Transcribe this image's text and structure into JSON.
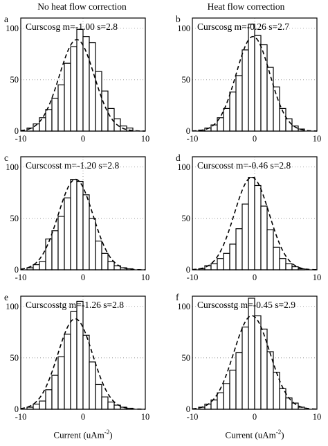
{
  "column_titles": [
    "No heat flow correction",
    "Heat flow correction"
  ],
  "xlabel": "Current (uAm",
  "xlabel_sup": "-2",
  "xlabel_close": ")",
  "chart_data": [
    {
      "type": "bar",
      "panel": "a",
      "annotation": "Curscosg m=-1.00 s=2.8",
      "xlim": [
        -10,
        10
      ],
      "ylim": [
        0,
        110
      ],
      "xticks": [
        "-10",
        "0",
        "10"
      ],
      "yticks": [
        "0",
        "50",
        "100"
      ],
      "grid": "dotted",
      "bin_centers": [
        -8.5,
        -7.5,
        -6.5,
        -5.5,
        -4.5,
        -3.5,
        -2.5,
        -1.5,
        -0.5,
        0.5,
        1.5,
        2.5,
        3.5,
        4.5,
        5.5,
        6.5,
        7.5
      ],
      "values": [
        3,
        7,
        13,
        21,
        32,
        45,
        66,
        82,
        99,
        92,
        86,
        58,
        39,
        22,
        12,
        5,
        3
      ],
      "fit": {
        "type": "gaussian",
        "mean": -1.0,
        "sd": 2.8,
        "peak": 89
      }
    },
    {
      "type": "bar",
      "panel": "b",
      "annotation": "Curscosg m=-0.26 s=2.7",
      "xlim": [
        -10,
        10
      ],
      "ylim": [
        0,
        110
      ],
      "xticks": [
        "-10",
        "0",
        "10"
      ],
      "yticks": [
        "0",
        "50",
        "100"
      ],
      "grid": "dotted",
      "bin_centers": [
        -8.5,
        -7.5,
        -6.5,
        -5.5,
        -4.5,
        -3.5,
        -2.5,
        -1.5,
        -0.5,
        0.5,
        1.5,
        2.5,
        3.5,
        4.5,
        5.5,
        6.5,
        7.5
      ],
      "values": [
        1,
        3,
        6,
        13,
        22,
        38,
        54,
        79,
        104,
        93,
        84,
        62,
        43,
        22,
        12,
        5,
        2
      ],
      "fit": {
        "type": "gaussian",
        "mean": -0.26,
        "sd": 2.7,
        "peak": 92
      }
    },
    {
      "type": "bar",
      "panel": "c",
      "annotation": "Curscosst m=-1.20 s=2.8",
      "xlim": [
        -10,
        10
      ],
      "ylim": [
        0,
        110
      ],
      "xticks": [
        "-10",
        "0",
        "10"
      ],
      "yticks": [
        "0",
        "50",
        "100"
      ],
      "grid": "dotted",
      "bin_centers": [
        -8.5,
        -7.5,
        -6.5,
        -5.5,
        -4.5,
        -3.5,
        -2.5,
        -1.5,
        -0.5,
        0.5,
        1.5,
        2.5,
        3.5,
        4.5,
        5.5,
        6.5,
        7.5
      ],
      "values": [
        2,
        5,
        8,
        30,
        38,
        52,
        70,
        88,
        86,
        73,
        50,
        28,
        16,
        8,
        4,
        2,
        1
      ],
      "fit": {
        "type": "gaussian",
        "mean": -1.2,
        "sd": 2.8,
        "peak": 88
      }
    },
    {
      "type": "bar",
      "panel": "d",
      "annotation": "Curscosst m=-0.46 s=2.8",
      "xlim": [
        -10,
        10
      ],
      "ylim": [
        0,
        110
      ],
      "xticks": [
        "-10",
        "0",
        "10"
      ],
      "yticks": [
        "0",
        "50",
        "100"
      ],
      "grid": "dotted",
      "bin_centers": [
        -8.5,
        -7.5,
        -6.5,
        -5.5,
        -4.5,
        -3.5,
        -2.5,
        -1.5,
        -0.5,
        0.5,
        1.5,
        2.5,
        3.5,
        4.5,
        5.5,
        6.5,
        7.5
      ],
      "values": [
        1,
        4,
        6,
        11,
        16,
        25,
        40,
        64,
        90,
        82,
        62,
        39,
        22,
        11,
        6,
        3,
        1
      ],
      "fit": {
        "type": "gaussian",
        "mean": -0.46,
        "sd": 2.8,
        "peak": 90
      }
    },
    {
      "type": "bar",
      "panel": "e",
      "annotation": "Curscosstg m=-1.26 s=2.8",
      "xlim": [
        -10,
        10
      ],
      "ylim": [
        0,
        110
      ],
      "xticks": [
        "-10",
        "0",
        "10"
      ],
      "yticks": [
        "0",
        "50",
        "100"
      ],
      "grid": "dotted",
      "bin_centers": [
        -8.5,
        -7.5,
        -6.5,
        -5.5,
        -4.5,
        -3.5,
        -2.5,
        -1.5,
        -0.5,
        0.5,
        1.5,
        2.5,
        3.5,
        4.5,
        5.5,
        6.5,
        7.5
      ],
      "values": [
        2,
        5,
        8,
        19,
        33,
        51,
        73,
        95,
        105,
        72,
        46,
        24,
        12,
        7,
        4,
        2,
        1
      ],
      "fit": {
        "type": "gaussian",
        "mean": -1.26,
        "sd": 2.8,
        "peak": 88
      }
    },
    {
      "type": "bar",
      "panel": "f",
      "annotation": "Curscosstg m=-0.45 s=2.9",
      "xlim": [
        -10,
        10
      ],
      "ylim": [
        0,
        110
      ],
      "xticks": [
        "-10",
        "0",
        "10"
      ],
      "yticks": [
        "0",
        "50",
        "100"
      ],
      "grid": "dotted",
      "bin_centers": [
        -8.5,
        -7.5,
        -6.5,
        -5.5,
        -4.5,
        -3.5,
        -2.5,
        -1.5,
        -0.5,
        0.5,
        1.5,
        2.5,
        3.5,
        4.5,
        5.5,
        6.5,
        7.5
      ],
      "values": [
        2,
        5,
        9,
        16,
        25,
        38,
        55,
        80,
        108,
        91,
        78,
        56,
        36,
        20,
        11,
        6,
        2
      ],
      "fit": {
        "type": "gaussian",
        "mean": -0.45,
        "sd": 2.9,
        "peak": 91
      }
    }
  ]
}
